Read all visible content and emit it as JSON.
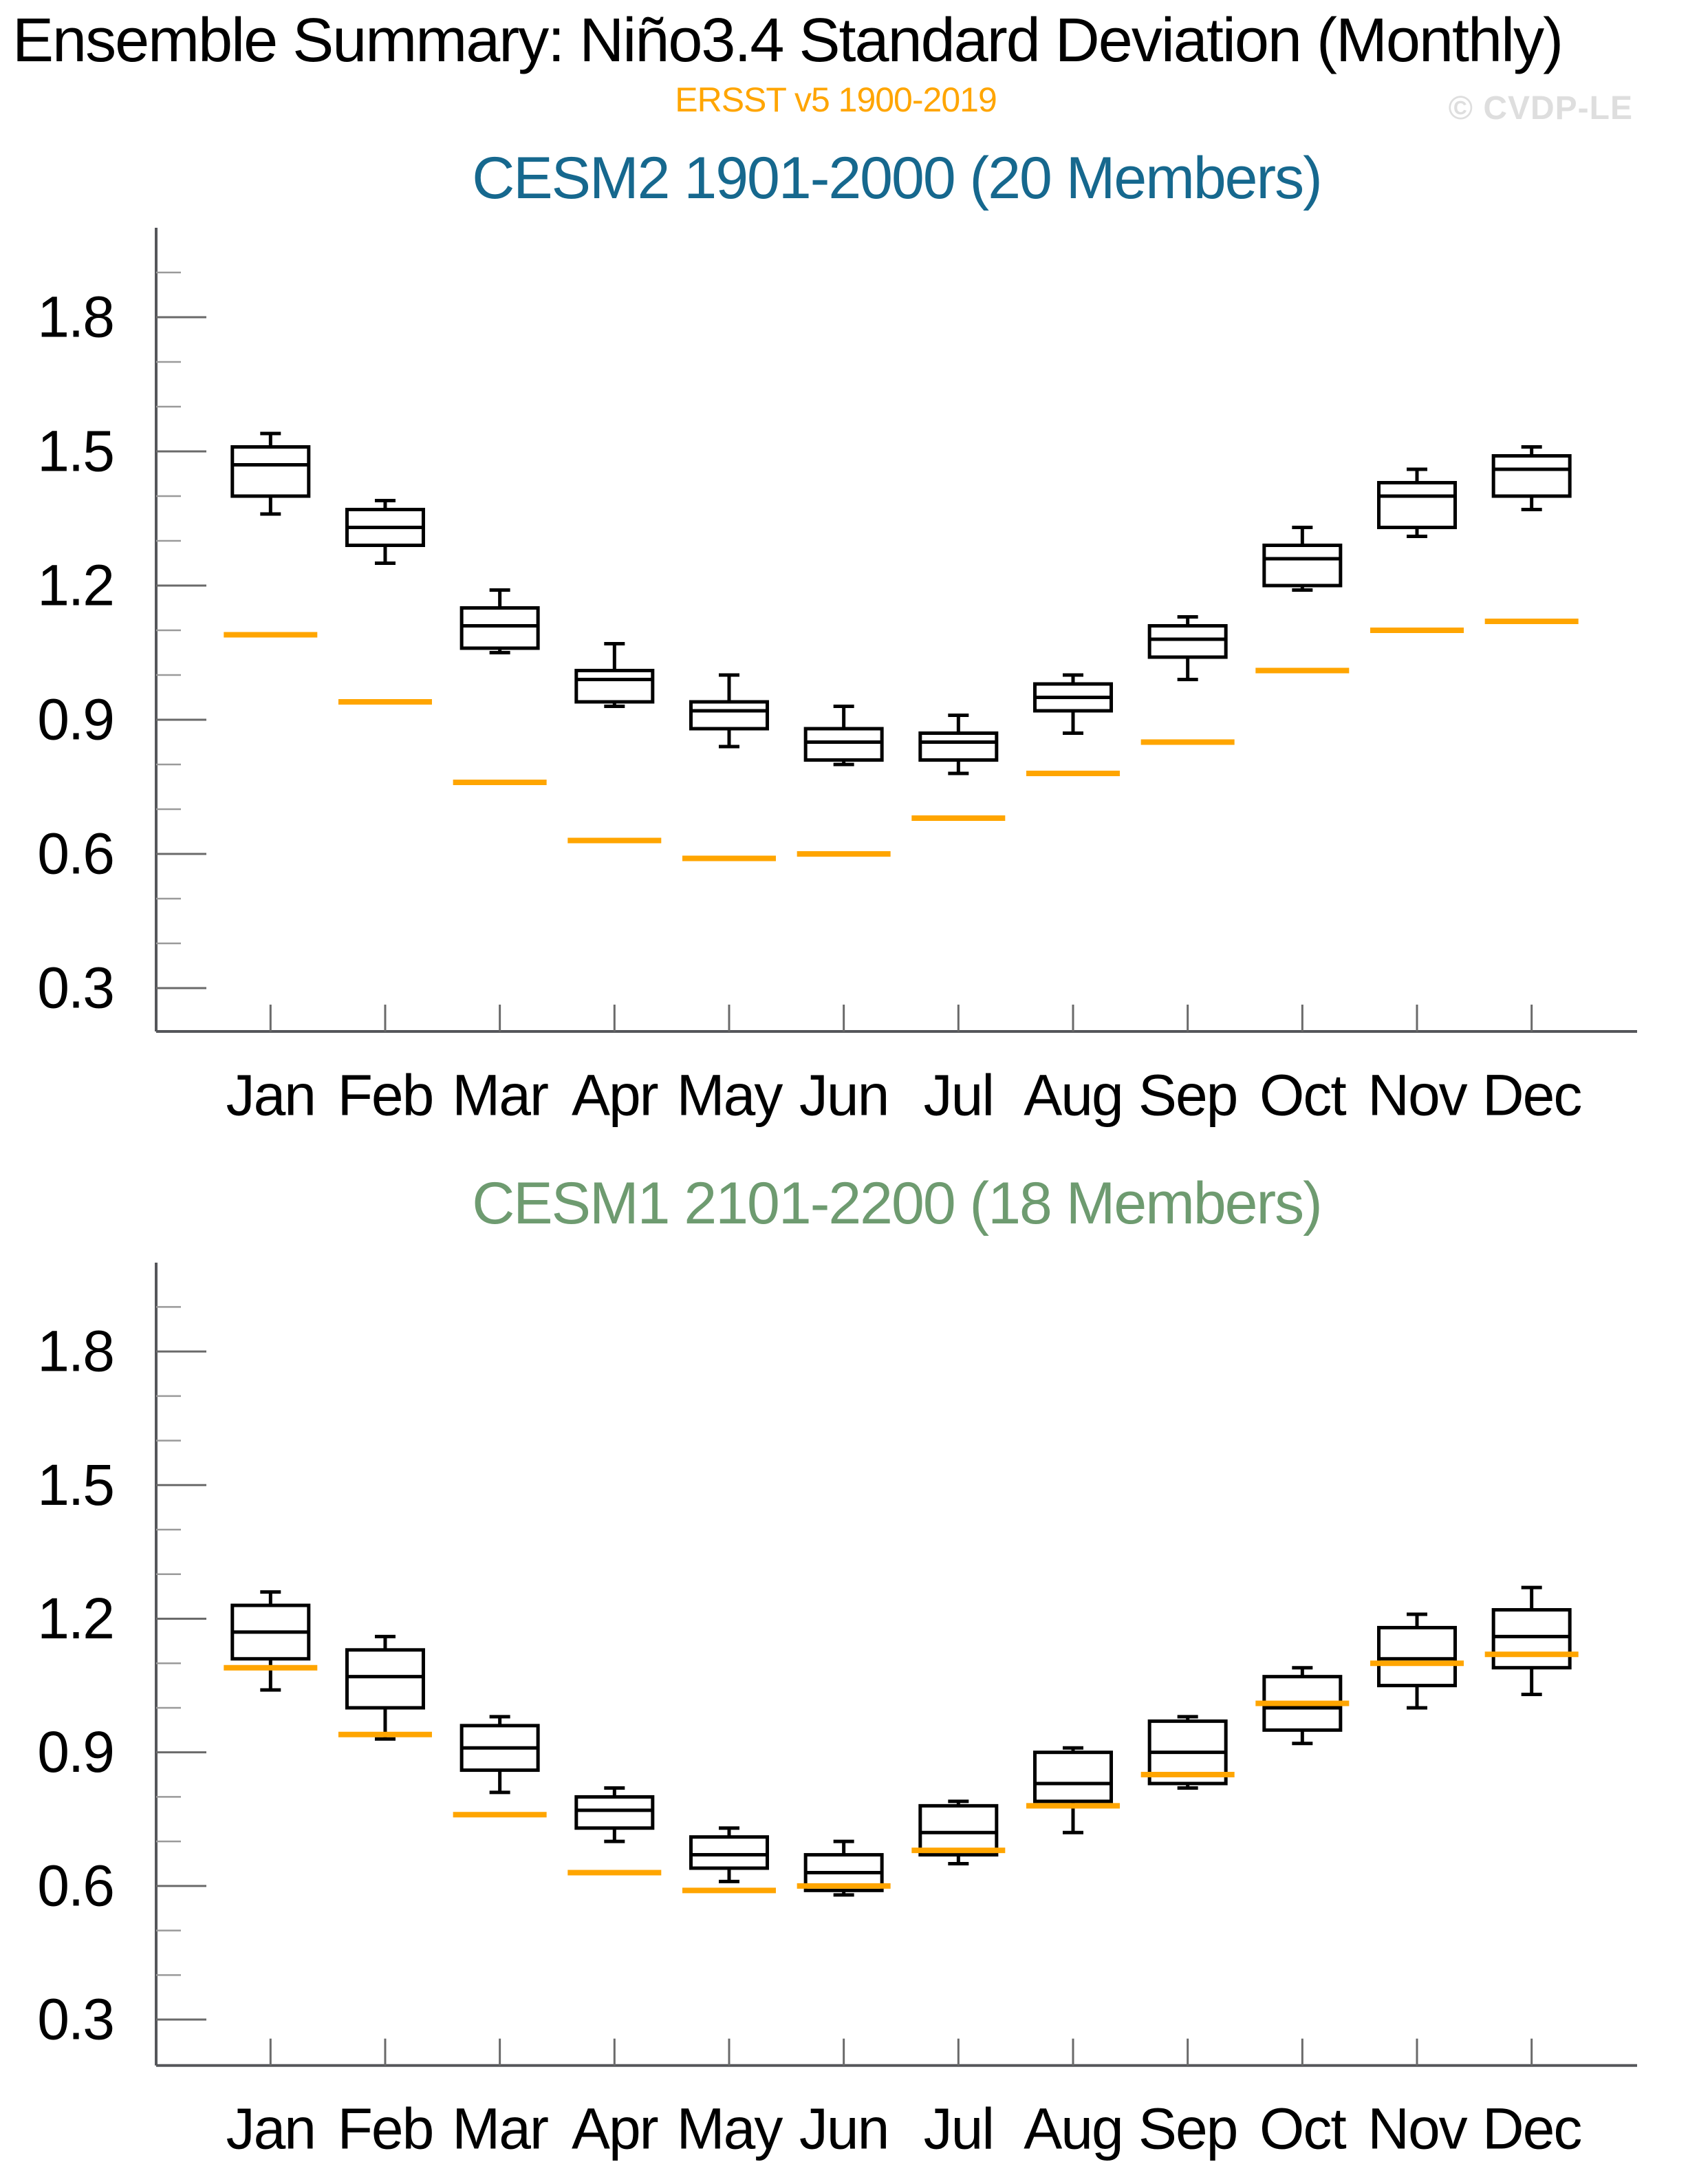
{
  "header": {
    "title": "Ensemble Summary: Niño3.4 Standard Deviation (Monthly)",
    "subtitle": "ERSST v5 1900-2019",
    "watermark": "© CVDP-LE"
  },
  "colors": {
    "obs_orange": "#FFA500",
    "panel1_title": "#16688E",
    "panel2_title": "#6E9B70",
    "box_stroke": "#000000",
    "axis": "#55565A",
    "major_tick": "#6A6A6A",
    "minor_tick": "#9A9A9A",
    "watermark_gray": "#DEDEDE"
  },
  "chart_data": [
    {
      "type": "boxplot",
      "title": "CESM2 1901-2000 (20 Members)",
      "title_color": "#16688E",
      "members": 20,
      "categories": [
        "Jan",
        "Feb",
        "Mar",
        "Apr",
        "May",
        "Jun",
        "Jul",
        "Aug",
        "Sep",
        "Oct",
        "Nov",
        "Dec"
      ],
      "ylabel": "",
      "xlabel": "",
      "ylim": [
        0.2,
        2.0
      ],
      "y_major_ticks": [
        0.3,
        0.6,
        0.9,
        1.2,
        1.5,
        1.8
      ],
      "y_tick_labels": [
        "0.3",
        "0.6",
        "0.9",
        "1.2",
        "1.5",
        "1.8"
      ],
      "y_minor_step": 0.1,
      "grid": false,
      "boxes": [
        {
          "month": "Jan",
          "low": 1.36,
          "q1": 1.4,
          "med": 1.47,
          "q3": 1.51,
          "high": 1.54
        },
        {
          "month": "Feb",
          "low": 1.25,
          "q1": 1.29,
          "med": 1.33,
          "q3": 1.37,
          "high": 1.39
        },
        {
          "month": "Mar",
          "low": 1.05,
          "q1": 1.06,
          "med": 1.11,
          "q3": 1.15,
          "high": 1.19
        },
        {
          "month": "Apr",
          "low": 0.93,
          "q1": 0.94,
          "med": 0.99,
          "q3": 1.01,
          "high": 1.07
        },
        {
          "month": "May",
          "low": 0.84,
          "q1": 0.88,
          "med": 0.92,
          "q3": 0.94,
          "high": 1.0
        },
        {
          "month": "Jun",
          "low": 0.8,
          "q1": 0.81,
          "med": 0.85,
          "q3": 0.88,
          "high": 0.93
        },
        {
          "month": "Jul",
          "low": 0.78,
          "q1": 0.81,
          "med": 0.85,
          "q3": 0.87,
          "high": 0.91
        },
        {
          "month": "Aug",
          "low": 0.87,
          "q1": 0.92,
          "med": 0.95,
          "q3": 0.98,
          "high": 1.0
        },
        {
          "month": "Sep",
          "low": 0.99,
          "q1": 1.04,
          "med": 1.08,
          "q3": 1.11,
          "high": 1.13
        },
        {
          "month": "Oct",
          "low": 1.19,
          "q1": 1.2,
          "med": 1.26,
          "q3": 1.29,
          "high": 1.33
        },
        {
          "month": "Nov",
          "low": 1.31,
          "q1": 1.33,
          "med": 1.4,
          "q3": 1.43,
          "high": 1.46
        },
        {
          "month": "Dec",
          "low": 1.37,
          "q1": 1.4,
          "med": 1.46,
          "q3": 1.49,
          "high": 1.51
        }
      ],
      "obs": {
        "name": "ERSST v5 1900-2019",
        "color": "#FFA500",
        "values": [
          1.09,
          0.94,
          0.76,
          0.63,
          0.59,
          0.6,
          0.68,
          0.78,
          0.85,
          1.01,
          1.1,
          1.12
        ]
      }
    },
    {
      "type": "boxplot",
      "title": "CESM1 2101-2200 (18 Members)",
      "title_color": "#6E9B70",
      "members": 18,
      "categories": [
        "Jan",
        "Feb",
        "Mar",
        "Apr",
        "May",
        "Jun",
        "Jul",
        "Aug",
        "Sep",
        "Oct",
        "Nov",
        "Dec"
      ],
      "ylabel": "",
      "xlabel": "",
      "ylim": [
        0.2,
        2.0
      ],
      "y_major_ticks": [
        0.3,
        0.6,
        0.9,
        1.2,
        1.5,
        1.8
      ],
      "y_tick_labels": [
        "0.3",
        "0.6",
        "0.9",
        "1.2",
        "1.5",
        "1.8"
      ],
      "y_minor_step": 0.1,
      "grid": false,
      "boxes": [
        {
          "month": "Jan",
          "low": 1.04,
          "q1": 1.11,
          "med": 1.17,
          "q3": 1.23,
          "high": 1.26
        },
        {
          "month": "Feb",
          "low": 0.93,
          "q1": 1.0,
          "med": 1.07,
          "q3": 1.13,
          "high": 1.16
        },
        {
          "month": "Mar",
          "low": 0.81,
          "q1": 0.86,
          "med": 0.91,
          "q3": 0.96,
          "high": 0.98
        },
        {
          "month": "Apr",
          "low": 0.7,
          "q1": 0.73,
          "med": 0.77,
          "q3": 0.8,
          "high": 0.82
        },
        {
          "month": "May",
          "low": 0.61,
          "q1": 0.64,
          "med": 0.67,
          "q3": 0.71,
          "high": 0.73
        },
        {
          "month": "Jun",
          "low": 0.58,
          "q1": 0.59,
          "med": 0.63,
          "q3": 0.67,
          "high": 0.7
        },
        {
          "month": "Jul",
          "low": 0.65,
          "q1": 0.67,
          "med": 0.72,
          "q3": 0.78,
          "high": 0.79
        },
        {
          "month": "Aug",
          "low": 0.72,
          "q1": 0.79,
          "med": 0.83,
          "q3": 0.9,
          "high": 0.91
        },
        {
          "month": "Sep",
          "low": 0.82,
          "q1": 0.83,
          "med": 0.9,
          "q3": 0.97,
          "high": 0.98
        },
        {
          "month": "Oct",
          "low": 0.92,
          "q1": 0.95,
          "med": 1.0,
          "q3": 1.07,
          "high": 1.09
        },
        {
          "month": "Nov",
          "low": 1.0,
          "q1": 1.05,
          "med": 1.11,
          "q3": 1.18,
          "high": 1.21
        },
        {
          "month": "Dec",
          "low": 1.03,
          "q1": 1.09,
          "med": 1.16,
          "q3": 1.22,
          "high": 1.27
        }
      ],
      "obs": {
        "name": "ERSST v5 1900-2019",
        "color": "#FFA500",
        "values": [
          1.09,
          0.94,
          0.76,
          0.63,
          0.59,
          0.6,
          0.68,
          0.78,
          0.85,
          1.01,
          1.1,
          1.12
        ]
      }
    }
  ]
}
